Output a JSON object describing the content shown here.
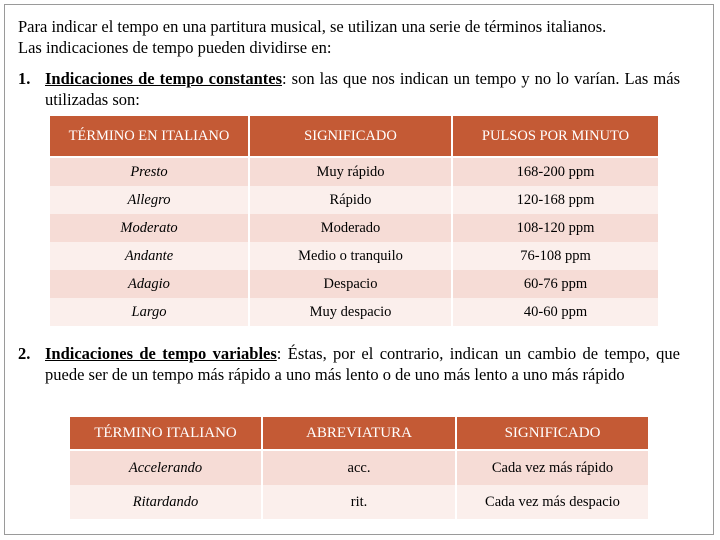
{
  "intro": {
    "line1": "Para indicar el tempo en una partitura musical, se utilizan una serie de términos italianos.",
    "line2": "Las indicaciones de tempo pueden dividirse en:"
  },
  "item1": {
    "number": "1.",
    "lead": "Indicaciones de tempo constantes",
    "rest": ": son las que nos indican un tempo y no lo varían. Las más utilizadas son:"
  },
  "table1": {
    "headers": [
      "TÉRMINO EN ITALIANO",
      "SIGNIFICADO",
      "PULSOS POR MINUTO"
    ],
    "rows": [
      [
        "Presto",
        "Muy rápido",
        "168-200 ppm"
      ],
      [
        "Allegro",
        "Rápido",
        "120-168 ppm"
      ],
      [
        "Moderato",
        "Moderado",
        "108-120 ppm"
      ],
      [
        "Andante",
        "Medio o tranquilo",
        "76-108 ppm"
      ],
      [
        "Adagio",
        "Despacio",
        "60-76 ppm"
      ],
      [
        "Largo",
        "Muy despacio",
        "40-60 ppm"
      ]
    ]
  },
  "item2": {
    "number": "2.",
    "lead": "Indicaciones de tempo variables",
    "rest": ": Éstas, por el contrario, indican un cambio de tempo, que puede ser de un tempo más rápido a uno más lento o de uno más lento a uno más rápido"
  },
  "table2": {
    "headers": [
      "TÉRMINO ITALIANO",
      "ABREVIATURA",
      "SIGNIFICADO"
    ],
    "rows": [
      [
        "Accelerando",
        "acc.",
        "Cada vez más rápido"
      ],
      [
        "Ritardando",
        "rit.",
        "Cada vez más despacio"
      ]
    ]
  },
  "colors": {
    "header_bg": "#c45a35",
    "row_odd": "#f6dcd6",
    "row_even": "#fbefec"
  }
}
